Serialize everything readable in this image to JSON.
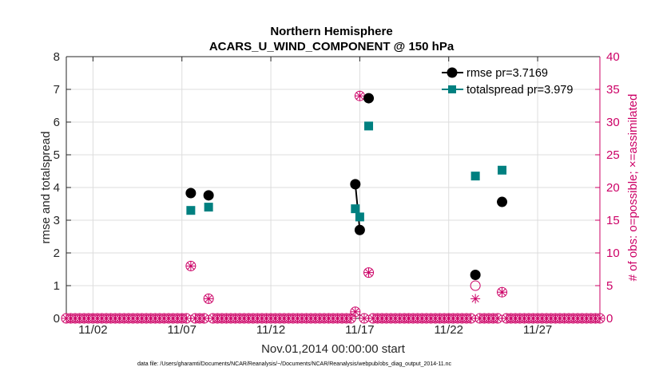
{
  "chart_data": {
    "type": "scatter",
    "title_line1": "Northern Hemisphere",
    "title_line2": "ACARS_U_WIND_COMPONENT @ 150 hPa",
    "xlabel": "Nov.01,2014 00:00:00 start",
    "ylabel": "rmse and totalspread",
    "ylabel_right": "# of obs: o=possible; ×=assimilated",
    "footnote": "data file: /Users/gharamti/Documents/NCAR/Reanalysis/~/Documents/NCAR/Reanalysis/webpub/obs_diag_output_2014-11.nc",
    "xlim": [
      0.5,
      30.5
    ],
    "ylim": [
      0,
      8
    ],
    "ylim_right": [
      0,
      40
    ],
    "xticks": [
      {
        "value": 2,
        "label": "11/02"
      },
      {
        "value": 7,
        "label": "11/07"
      },
      {
        "value": 12,
        "label": "11/12"
      },
      {
        "value": 17,
        "label": "11/17"
      },
      {
        "value": 22,
        "label": "11/22"
      },
      {
        "value": 27,
        "label": "11/27"
      }
    ],
    "yticks": [
      {
        "value": 0,
        "label": "0"
      },
      {
        "value": 1,
        "label": "1"
      },
      {
        "value": 2,
        "label": "2"
      },
      {
        "value": 3,
        "label": "3"
      },
      {
        "value": 4,
        "label": "4"
      },
      {
        "value": 5,
        "label": "5"
      },
      {
        "value": 6,
        "label": "6"
      },
      {
        "value": 7,
        "label": "7"
      },
      {
        "value": 8,
        "label": "8"
      }
    ],
    "yticks_right": [
      {
        "value": 0,
        "label": "0"
      },
      {
        "value": 5,
        "label": "5"
      },
      {
        "value": 10,
        "label": "10"
      },
      {
        "value": 15,
        "label": "15"
      },
      {
        "value": 20,
        "label": "20"
      },
      {
        "value": 25,
        "label": "25"
      },
      {
        "value": 30,
        "label": "30"
      },
      {
        "value": 35,
        "label": "35"
      },
      {
        "value": 40,
        "label": "40"
      }
    ],
    "colors": {
      "rmse": "#000000",
      "totalspread": "#008080",
      "obs": "#cc0066",
      "grid": "#dddddd",
      "axis": "#262626"
    },
    "series": [
      {
        "name": "rmse",
        "legend": "rmse pr=3.7169",
        "marker": "circle",
        "points": [
          {
            "x": 7.5,
            "y": 3.83
          },
          {
            "x": 8.5,
            "y": 3.76
          },
          {
            "x": 16.75,
            "y": 4.1
          },
          {
            "x": 17.0,
            "y": 2.7
          },
          {
            "x": 17.5,
            "y": 6.73
          },
          {
            "x": 23.5,
            "y": 1.33
          },
          {
            "x": 25.0,
            "y": 3.56
          }
        ],
        "connected_pairs": [
          [
            16.75,
            17.0
          ]
        ]
      },
      {
        "name": "totalspread",
        "legend": "totalspread pr=3.979",
        "marker": "square",
        "points": [
          {
            "x": 7.5,
            "y": 3.3
          },
          {
            "x": 8.5,
            "y": 3.4
          },
          {
            "x": 16.75,
            "y": 3.35
          },
          {
            "x": 17.0,
            "y": 3.1
          },
          {
            "x": 17.5,
            "y": 5.88
          },
          {
            "x": 23.5,
            "y": 4.35
          },
          {
            "x": 25.0,
            "y": 4.53
          }
        ],
        "connected_pairs": [
          [
            16.75,
            17.0
          ]
        ]
      }
    ],
    "obs_counts": {
      "step": 0.25,
      "start": 0.5,
      "end": 30.5,
      "nonzero_possible": [
        {
          "x": 7.5,
          "value": 8
        },
        {
          "x": 8.5,
          "value": 3
        },
        {
          "x": 16.75,
          "value": 1
        },
        {
          "x": 17.0,
          "value": 34
        },
        {
          "x": 17.5,
          "value": 7
        },
        {
          "x": 23.5,
          "value": 5
        },
        {
          "x": 25.0,
          "value": 4
        }
      ],
      "nonzero_assimilated": [
        {
          "x": 7.5,
          "value": 8
        },
        {
          "x": 8.5,
          "value": 3
        },
        {
          "x": 16.75,
          "value": 1
        },
        {
          "x": 17.0,
          "value": 34
        },
        {
          "x": 17.5,
          "value": 7
        },
        {
          "x": 23.5,
          "value": 3
        },
        {
          "x": 25.0,
          "value": 4
        }
      ]
    }
  }
}
